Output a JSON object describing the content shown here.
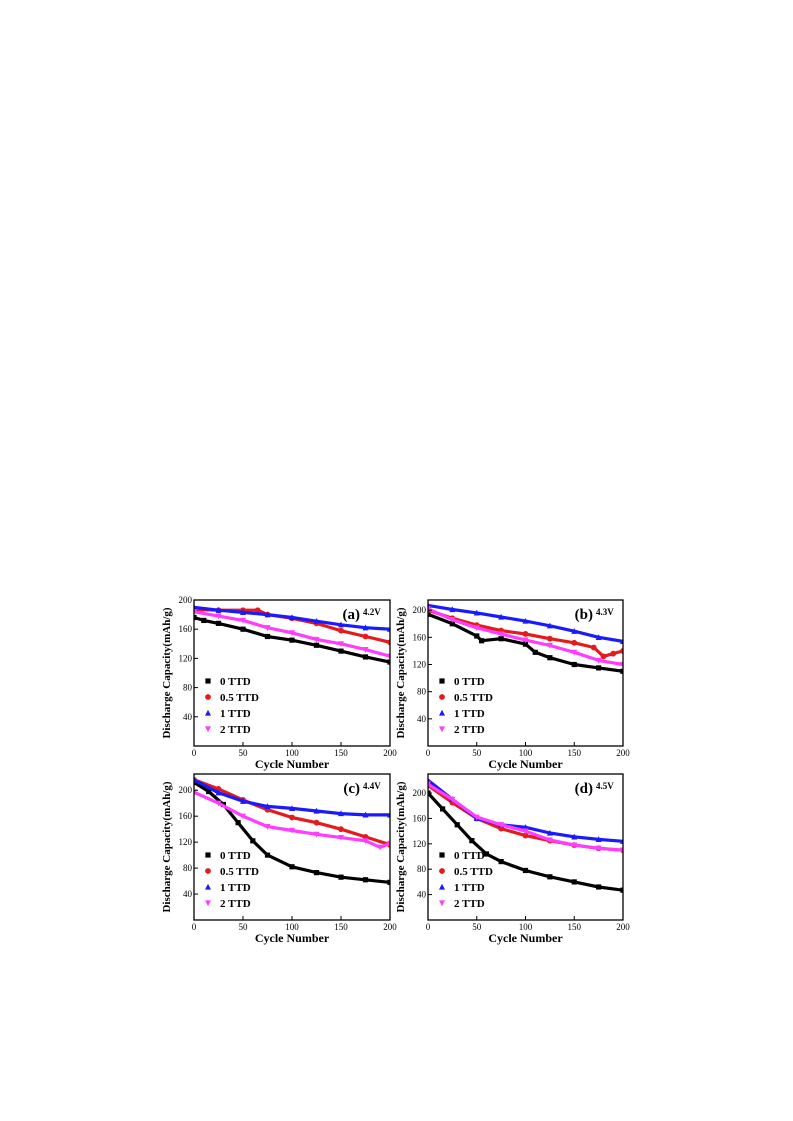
{
  "figure": {
    "x_axis_label": "Cycle Number",
    "y_axis_label": "Discharge Capacity(mAh/g)"
  },
  "chart_data": [
    {
      "type": "scatter",
      "panel_label": "(a)",
      "voltage": "4.2V",
      "xlabel": "Cycle Number",
      "ylabel": "Discharge Capacity(mAh/g)",
      "xlim": [
        0,
        200
      ],
      "ylim": [
        0,
        200
      ],
      "xticks": [
        "0",
        "50",
        "100",
        "150",
        "200"
      ],
      "yticks": [
        "40",
        "80",
        "120",
        "160",
        "200"
      ],
      "legend_position": "bottom-left",
      "series": [
        {
          "name": "0 TTD",
          "color": "#000000",
          "marker": "square",
          "x": [
            0,
            10,
            25,
            50,
            75,
            100,
            125,
            150,
            175,
            200
          ],
          "values": [
            176,
            172,
            168,
            160,
            150,
            145,
            138,
            130,
            122,
            115
          ]
        },
        {
          "name": "0.5 TTD",
          "color": "#e41a1c",
          "marker": "circle",
          "x": [
            0,
            25,
            50,
            65,
            75,
            100,
            125,
            150,
            175,
            200
          ],
          "values": [
            187,
            186,
            186,
            186,
            180,
            175,
            168,
            158,
            150,
            142
          ]
        },
        {
          "name": "1 TTD",
          "color": "#1a1aff",
          "marker": "triangle",
          "x": [
            0,
            25,
            50,
            75,
            100,
            125,
            150,
            175,
            200
          ],
          "values": [
            190,
            186,
            183,
            180,
            176,
            171,
            166,
            162,
            160
          ]
        },
        {
          "name": "2 TTD",
          "color": "#ff3cff",
          "marker": "triangle-down",
          "x": [
            0,
            25,
            50,
            75,
            100,
            125,
            150,
            175,
            200
          ],
          "values": [
            184,
            178,
            172,
            162,
            155,
            146,
            140,
            132,
            123
          ]
        }
      ]
    },
    {
      "type": "scatter",
      "panel_label": "(b)",
      "voltage": "4.3V",
      "xlabel": "Cycle Number",
      "ylabel": "Discharge Capacity(mAh/g)",
      "xlim": [
        0,
        200
      ],
      "ylim": [
        0,
        215
      ],
      "xticks": [
        "0",
        "50",
        "100",
        "150",
        "200"
      ],
      "yticks": [
        "40",
        "80",
        "120",
        "160",
        "200"
      ],
      "legend_position": "bottom-left",
      "series": [
        {
          "name": "0 TTD",
          "color": "#000000",
          "marker": "square",
          "x": [
            0,
            25,
            50,
            55,
            75,
            100,
            110,
            125,
            150,
            175,
            200
          ],
          "values": [
            194,
            180,
            162,
            155,
            158,
            150,
            138,
            130,
            120,
            115,
            110
          ]
        },
        {
          "name": "0.5 TTD",
          "color": "#e41a1c",
          "marker": "circle",
          "x": [
            0,
            25,
            50,
            75,
            100,
            125,
            150,
            170,
            180,
            190,
            200
          ],
          "values": [
            200,
            188,
            178,
            170,
            165,
            158,
            152,
            145,
            132,
            136,
            140
          ]
        },
        {
          "name": "1 TTD",
          "color": "#1a1aff",
          "marker": "triangle",
          "x": [
            0,
            25,
            50,
            75,
            100,
            125,
            150,
            175,
            200
          ],
          "values": [
            207,
            201,
            196,
            190,
            184,
            177,
            169,
            160,
            154
          ]
        },
        {
          "name": "2 TTD",
          "color": "#ff3cff",
          "marker": "triangle-down",
          "x": [
            0,
            25,
            50,
            75,
            100,
            125,
            150,
            175,
            200
          ],
          "values": [
            202,
            186,
            174,
            165,
            156,
            148,
            138,
            126,
            120
          ]
        }
      ]
    },
    {
      "type": "scatter",
      "panel_label": "(c)",
      "voltage": "4.4V",
      "xlabel": "Cycle Number",
      "ylabel": "Discharge Capacity(mAh/g)",
      "xlim": [
        0,
        200
      ],
      "ylim": [
        0,
        225
      ],
      "xticks": [
        "0",
        "50",
        "100",
        "150",
        "200"
      ],
      "yticks": [
        "40",
        "80",
        "120",
        "160",
        "200"
      ],
      "legend_position": "bottom-left",
      "series": [
        {
          "name": "0 TTD",
          "color": "#000000",
          "marker": "square",
          "x": [
            0,
            15,
            30,
            45,
            60,
            75,
            100,
            125,
            150,
            175,
            200
          ],
          "values": [
            212,
            198,
            178,
            150,
            122,
            100,
            82,
            73,
            66,
            62,
            58
          ]
        },
        {
          "name": "0.5 TTD",
          "color": "#e41a1c",
          "marker": "circle",
          "x": [
            0,
            25,
            50,
            75,
            100,
            125,
            150,
            175,
            200
          ],
          "values": [
            216,
            202,
            185,
            170,
            158,
            150,
            140,
            128,
            116
          ]
        },
        {
          "name": "1 TTD",
          "color": "#1a1aff",
          "marker": "triangle",
          "x": [
            0,
            25,
            50,
            75,
            100,
            125,
            150,
            175,
            200
          ],
          "values": [
            216,
            196,
            183,
            175,
            172,
            168,
            164,
            162,
            162
          ]
        },
        {
          "name": "2 TTD",
          "color": "#ff3cff",
          "marker": "triangle-down",
          "x": [
            0,
            25,
            50,
            75,
            100,
            125,
            150,
            175,
            190,
            200
          ],
          "values": [
            197,
            180,
            160,
            144,
            138,
            132,
            127,
            122,
            112,
            118
          ]
        }
      ]
    },
    {
      "type": "scatter",
      "panel_label": "(d)",
      "voltage": "4.5V",
      "xlabel": "Cycle Number",
      "ylabel": "Discharge Capacity(mAh/g)",
      "xlim": [
        0,
        200
      ],
      "ylim": [
        0,
        230
      ],
      "xticks": [
        "0",
        "50",
        "100",
        "150",
        "200"
      ],
      "yticks": [
        "40",
        "80",
        "120",
        "160",
        "200"
      ],
      "legend_position": "bottom-left",
      "series": [
        {
          "name": "0 TTD",
          "color": "#000000",
          "marker": "square",
          "x": [
            0,
            15,
            30,
            45,
            60,
            75,
            100,
            125,
            150,
            175,
            200
          ],
          "values": [
            200,
            175,
            150,
            125,
            104,
            92,
            78,
            68,
            60,
            52,
            47
          ]
        },
        {
          "name": "0.5 TTD",
          "color": "#e41a1c",
          "marker": "circle",
          "x": [
            0,
            25,
            50,
            75,
            100,
            125,
            150,
            175,
            200
          ],
          "values": [
            212,
            185,
            160,
            144,
            133,
            125,
            118,
            113,
            110
          ]
        },
        {
          "name": "1 TTD",
          "color": "#1a1aff",
          "marker": "triangle",
          "x": [
            0,
            25,
            50,
            75,
            100,
            125,
            150,
            175,
            200
          ],
          "values": [
            220,
            190,
            160,
            150,
            146,
            137,
            131,
            127,
            124
          ]
        },
        {
          "name": "2 TTD",
          "color": "#ff3cff",
          "marker": "triangle-down",
          "x": [
            0,
            25,
            50,
            75,
            100,
            125,
            150,
            175,
            200
          ],
          "values": [
            214,
            190,
            162,
            150,
            140,
            126,
            118,
            113,
            110
          ]
        }
      ]
    }
  ]
}
